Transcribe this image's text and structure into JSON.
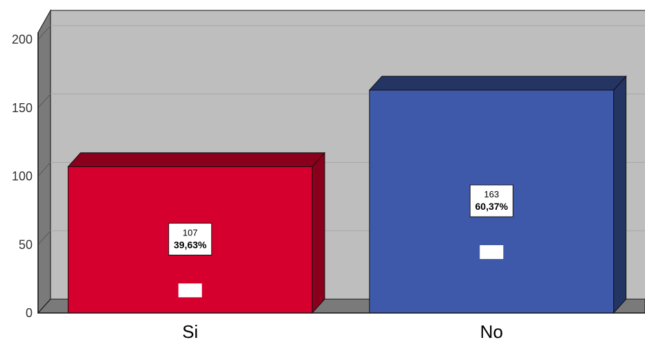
{
  "chart_data": {
    "type": "bar",
    "title": "",
    "xlabel": "",
    "ylabel": "",
    "categories": [
      "Si",
      "No"
    ],
    "values": [
      107,
      163
    ],
    "percent_labels": [
      "39,63%",
      "60,37%"
    ],
    "count_labels": [
      "107",
      "163"
    ],
    "ylim": [
      0,
      200
    ],
    "yticks": [
      "0",
      "50",
      "100",
      "150",
      "200"
    ],
    "grid": true,
    "style": "3d",
    "legend": "none",
    "colors": {
      "plot_background": "#bebebe",
      "wall_side": "#7a7a7a",
      "floor": "#7a7a7a",
      "bars": [
        "#d5002d",
        "#3f59aa"
      ],
      "bar_tops": [
        "#8a001c",
        "#243564"
      ]
    }
  }
}
